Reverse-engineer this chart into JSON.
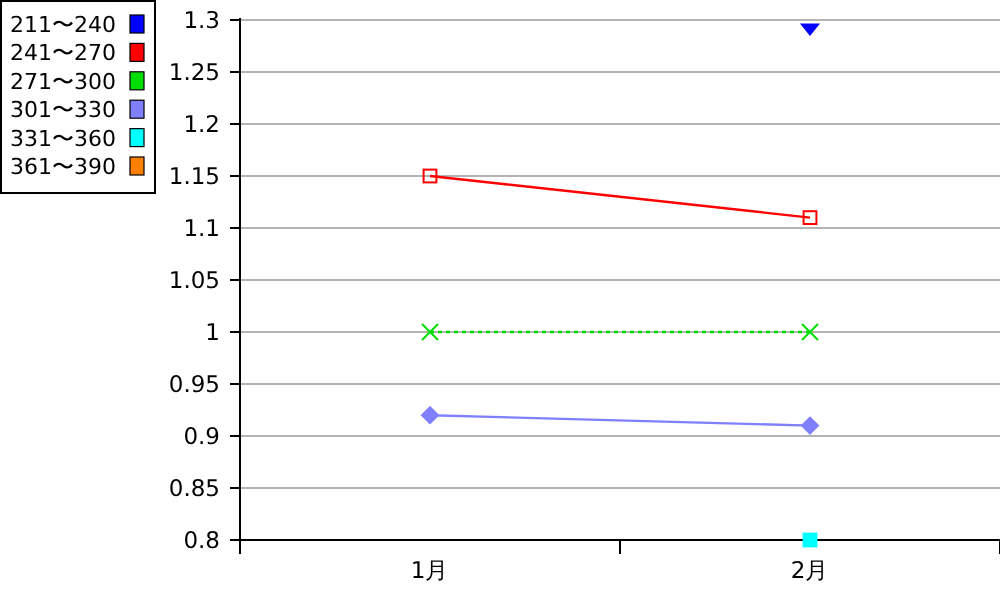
{
  "chart_data": {
    "type": "line",
    "categories": [
      "1月",
      "2月"
    ],
    "ylim": [
      0.8,
      1.3
    ],
    "yticks": [
      0.8,
      0.85,
      0.9,
      0.95,
      1,
      1.05,
      1.1,
      1.15,
      1.2,
      1.25,
      1.3
    ],
    "grid": "y",
    "legend": "top left",
    "series": [
      {
        "name": "211〜240",
        "color": "#0000ff",
        "values": [
          null,
          1.29
        ],
        "marker": "triangle",
        "line_style": "solid"
      },
      {
        "name": "241〜270",
        "color": "#ff0000",
        "values": [
          1.15,
          1.11
        ],
        "marker": "square",
        "line_style": "solid"
      },
      {
        "name": "271〜300",
        "color": "#00dd00",
        "values": [
          1.0,
          1.0
        ],
        "marker": "cross",
        "line_style": "dotted"
      },
      {
        "name": "301〜330",
        "color": "#8080ff",
        "values": [
          0.92,
          0.91
        ],
        "marker": "diamond",
        "line_style": "solid"
      },
      {
        "name": "331〜360",
        "color": "#00ffff",
        "values": [
          null,
          0.8
        ],
        "marker": "square",
        "line_style": "solid"
      },
      {
        "name": "361〜390",
        "color": "#ff8000",
        "values": [
          null,
          null
        ],
        "marker": "square",
        "line_style": "solid"
      }
    ]
  }
}
